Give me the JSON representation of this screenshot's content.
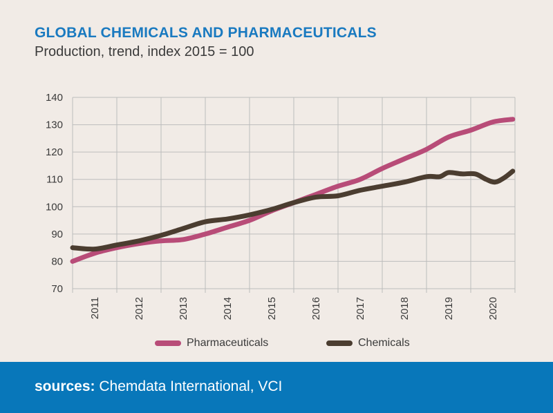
{
  "header": {
    "title": "GLOBAL CHEMICALS AND PHARMACEUTICALS",
    "subtitle": "Production, trend, index 2015 = 100"
  },
  "footer": {
    "label": "sources:",
    "text": "Chemdata International, VCI"
  },
  "colors": {
    "pharmaceuticals": "#b84c78",
    "chemicals": "#4b3d30",
    "grid": "#bcbcbc",
    "axis_text": "#3a3a3a"
  },
  "chart_data": {
    "type": "line",
    "title": "GLOBAL CHEMICALS AND PHARMACEUTICALS",
    "subtitle": "Production, trend, index 2015 = 100",
    "xlabel": "",
    "ylabel": "",
    "ylim": [
      70,
      140
    ],
    "yticks": [
      70,
      80,
      90,
      100,
      110,
      120,
      130,
      140
    ],
    "xlim": [
      2010.5,
      2020.5
    ],
    "x_tick_labels": [
      "2011",
      "2012",
      "2013",
      "2014",
      "2015",
      "2016",
      "2017",
      "2018",
      "2019",
      "2020"
    ],
    "grid": true,
    "legend_position": "bottom",
    "series": [
      {
        "name": "Pharmaceuticals",
        "color_key": "pharmaceuticals",
        "points": [
          [
            2010.5,
            80
          ],
          [
            2011.0,
            83
          ],
          [
            2011.5,
            85
          ],
          [
            2012.0,
            86.5
          ],
          [
            2012.5,
            87.5
          ],
          [
            2013.0,
            88
          ],
          [
            2013.5,
            90
          ],
          [
            2014.0,
            92.5
          ],
          [
            2014.5,
            95
          ],
          [
            2015.0,
            98.5
          ],
          [
            2015.5,
            101.5
          ],
          [
            2016.0,
            104.5
          ],
          [
            2016.5,
            107.5
          ],
          [
            2017.0,
            110
          ],
          [
            2017.5,
            114
          ],
          [
            2018.0,
            117.5
          ],
          [
            2018.5,
            121
          ],
          [
            2019.0,
            125.5
          ],
          [
            2019.5,
            128
          ],
          [
            2020.0,
            131
          ],
          [
            2020.45,
            132
          ]
        ]
      },
      {
        "name": "Chemicals",
        "color_key": "chemicals",
        "points": [
          [
            2010.5,
            85
          ],
          [
            2011.0,
            84.5
          ],
          [
            2011.5,
            86
          ],
          [
            2012.0,
            87.5
          ],
          [
            2012.5,
            89.5
          ],
          [
            2013.0,
            92
          ],
          [
            2013.5,
            94.5
          ],
          [
            2014.0,
            95.5
          ],
          [
            2014.5,
            97
          ],
          [
            2015.0,
            99
          ],
          [
            2015.5,
            101.5
          ],
          [
            2016.0,
            103.5
          ],
          [
            2016.5,
            104
          ],
          [
            2017.0,
            106
          ],
          [
            2017.5,
            107.5
          ],
          [
            2018.0,
            109
          ],
          [
            2018.5,
            111
          ],
          [
            2018.8,
            111
          ],
          [
            2019.0,
            112.5
          ],
          [
            2019.3,
            112
          ],
          [
            2019.6,
            112
          ],
          [
            2019.85,
            110
          ],
          [
            2020.05,
            109
          ],
          [
            2020.25,
            110.5
          ],
          [
            2020.45,
            113
          ]
        ]
      }
    ]
  }
}
